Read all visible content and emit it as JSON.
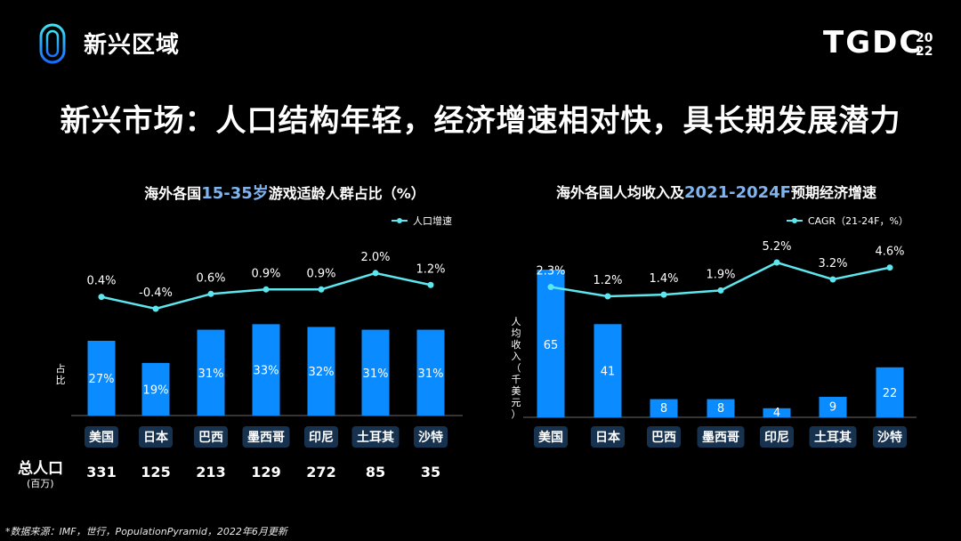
{
  "header": {
    "section_title": "新兴区域",
    "brand": "TGDC",
    "brand_year_top": "20",
    "brand_year_bottom": "22"
  },
  "main_title": "新兴市场：人口结构年轻，经济增速相对快，具长期发展潜力",
  "left_chart_title": {
    "pre": "海外各国",
    "highlight": "15-35岁",
    "post": "游戏适龄人群占比（%）"
  },
  "right_chart_title": {
    "pre": "海外各国人均收入及",
    "highlight": "2021-2024F",
    "post": "预期经济增速"
  },
  "population": {
    "label": "总人口",
    "unit": "(百万)",
    "values": [
      "331",
      "125",
      "213",
      "129",
      "272",
      "85",
      "35"
    ]
  },
  "source": "*数据来源：IMF，世行，PopulationPyramid，2022年6月更新",
  "colors": {
    "bar": "#0a8bff",
    "line": "#5ee6ee",
    "axis": "#6a6a6a",
    "category_bg": "#17324f",
    "highlight": "#7fb4ef"
  },
  "chart_data": [
    {
      "type": "bar",
      "categories": [
        "美国",
        "日本",
        "巴西",
        "墨西哥",
        "印尼",
        "土耳其",
        "沙特"
      ],
      "ylabel": "占比",
      "series": [
        {
          "values": [
            27,
            19,
            31,
            33,
            32,
            31,
            31
          ],
          "labels": [
            "27%",
            "19%",
            "31%",
            "33%",
            "32%",
            "31%",
            "31%"
          ]
        },
        {
          "name": "人口增速",
          "type": "line",
          "values": [
            0.4,
            -0.4,
            0.6,
            0.9,
            0.9,
            2.0,
            1.2
          ],
          "labels": [
            "0.4%",
            "-0.4%",
            "0.6%",
            "0.9%",
            "0.9%",
            "2.0%",
            "1.2%"
          ]
        }
      ],
      "legend": "top-right",
      "grid": false
    },
    {
      "type": "bar",
      "categories": [
        "美国",
        "日本",
        "巴西",
        "墨西哥",
        "印尼",
        "土耳其",
        "沙特"
      ],
      "ylabel": "人均收入（千美元）",
      "series": [
        {
          "values": [
            65,
            41,
            8,
            8,
            4,
            9,
            22
          ],
          "labels": [
            "65",
            "41",
            "8",
            "8",
            "4",
            "9",
            "22"
          ]
        },
        {
          "name": "CAGR（21-24F，%）",
          "type": "line",
          "values": [
            2.3,
            1.2,
            1.4,
            1.9,
            5.2,
            3.2,
            4.6
          ],
          "labels": [
            "2.3%",
            "1.2%",
            "1.4%",
            "1.9%",
            "5.2%",
            "3.2%",
            "4.6%"
          ]
        }
      ],
      "legend": "top-right",
      "grid": false
    }
  ]
}
